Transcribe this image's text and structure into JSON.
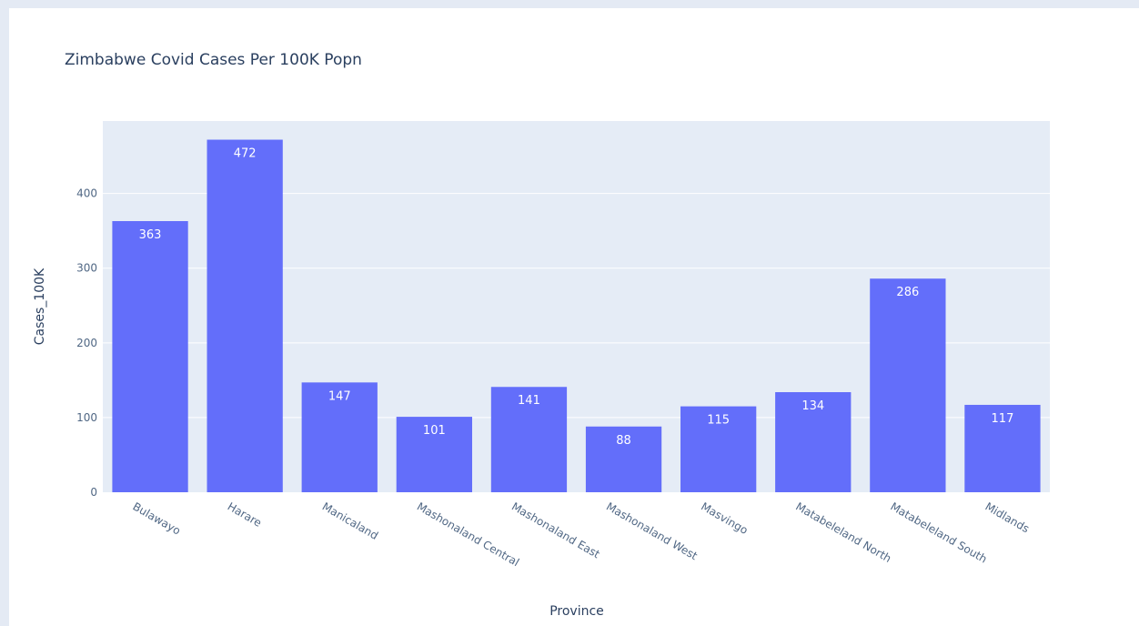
{
  "chart_data": {
    "type": "bar",
    "title": "Zimbabwe Covid Cases Per 100K Popn",
    "xlabel": "Province",
    "ylabel": "Cases_100K",
    "categories": [
      "Bulawayo",
      "Harare",
      "Manicaland",
      "Mashonaland Central",
      "Mashonaland East",
      "Mashonaland West",
      "Masvingo",
      "Matabeleland North",
      "Matabeleland South",
      "Midlands"
    ],
    "values": [
      363,
      472,
      147,
      101,
      141,
      88,
      115,
      134,
      286,
      117
    ],
    "value_labels": [
      "363",
      "472",
      "147",
      "101",
      "141",
      "88",
      "115",
      "134",
      "286",
      "117"
    ],
    "ylim": [
      0,
      497
    ],
    "yticks": [
      0,
      100,
      200,
      300,
      400
    ],
    "grid": true,
    "colors": {
      "bar": "#636efa",
      "plot_background": "#e5ecf6",
      "page_background": "#e4eaf4",
      "grid": "#ffffff",
      "text": "#2a3f5f",
      "tick_text": "#506784"
    }
  }
}
